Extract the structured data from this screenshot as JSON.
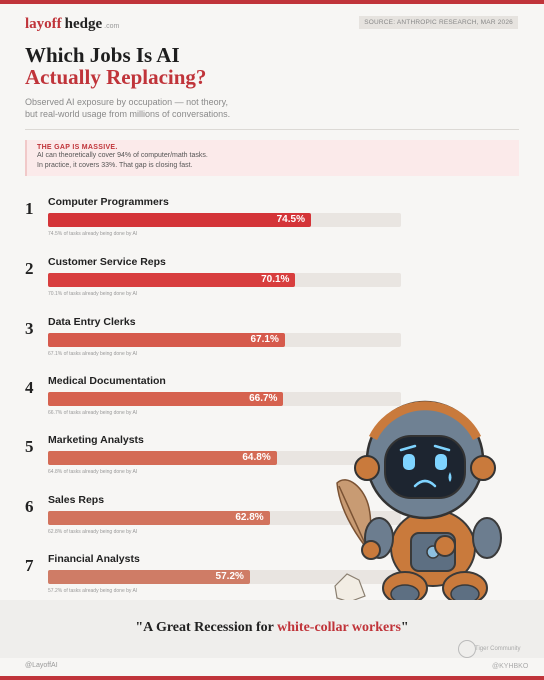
{
  "brand": {
    "part1": "layoff",
    "part2": "hedge",
    "part3": ".com"
  },
  "source": "SOURCE: ANTHROPIC RESEARCH, MAR 2026",
  "title": {
    "line1": "Which Jobs Is AI",
    "line2": "Actually Replacing?"
  },
  "subtitle": {
    "line1": "Observed AI exposure by occupation — not theory,",
    "line2": "but real-world usage from millions of conversations."
  },
  "callout": {
    "heading": "THE GAP IS MASSIVE.",
    "line1": "AI can theoretically cover 94% of computer/math tasks.",
    "line2": "In practice, it covers 33%. That gap is closing fast."
  },
  "chart_data": {
    "type": "bar",
    "orientation": "horizontal",
    "xlim": [
      0,
      100
    ],
    "categories": [
      "Computer Programmers",
      "Customer Service Reps",
      "Data Entry Clerks",
      "Medical Documentation",
      "Marketing Analysts",
      "Sales Reps",
      "Financial Analysts"
    ],
    "ranks": [
      "1",
      "2",
      "3",
      "4",
      "5",
      "6",
      "7"
    ],
    "values": [
      74.5,
      70.1,
      67.1,
      66.7,
      64.8,
      62.8,
      57.2
    ],
    "value_labels": [
      "74.5%",
      "70.1%",
      "67.1%",
      "66.7%",
      "64.8%",
      "62.8%",
      "57.2%"
    ],
    "notes": [
      "74.5% of tasks already being done by AI",
      "70.1% of tasks already being done by AI",
      "67.1% of tasks already being done by AI",
      "66.7% of tasks already being done by AI",
      "64.8% of tasks already being done by AI",
      "62.8% of tasks already being done by AI",
      "57.2% of tasks already being done by AI"
    ],
    "bar_colors": [
      "#d43438",
      "#d83e3e",
      "#d65a4c",
      "#d6624f",
      "#d46b55",
      "#d2735d",
      "#cf7c66"
    ]
  },
  "quote": {
    "open": "\"A Great Recession for ",
    "highlight": "white-collar workers",
    "close": "\""
  },
  "footer": {
    "handle": "@LayoffAI"
  },
  "watermark": {
    "name": "Tiger Community",
    "handle": "@KYHBKO"
  },
  "colors": {
    "accent": "#c0343a",
    "background": "#f7f6f4",
    "track": "#e9e5e1"
  }
}
